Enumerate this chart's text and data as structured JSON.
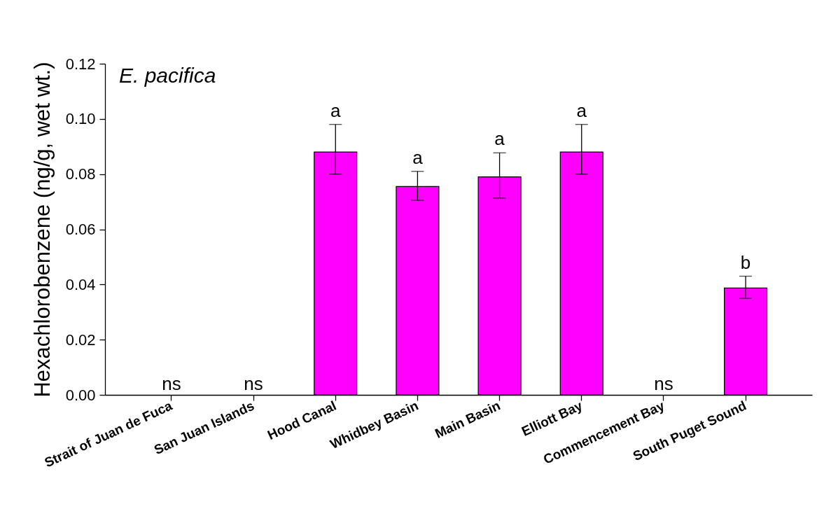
{
  "chart_data": {
    "type": "bar",
    "title": "E. pacifica",
    "ylabel": "Hexachlorobenzene (ng/g, wet wt.)",
    "categories": [
      "Strait of Juan de Fuca",
      "San Juan Islands",
      "Hood Canal",
      "Whidbey Basin",
      "Main Basin",
      "Elliott Bay",
      "Commencement Bay",
      "South Puget Sound"
    ],
    "values": [
      null,
      null,
      0.088,
      0.0755,
      0.079,
      0.088,
      null,
      0.0387
    ],
    "errors": [
      null,
      null,
      [
        0.08,
        0.098
      ],
      [
        0.0705,
        0.081
      ],
      [
        0.0713,
        0.0877
      ],
      [
        0.08,
        0.098
      ],
      null,
      [
        0.035,
        0.043
      ]
    ],
    "color": "#ff00ff",
    "ylim": [
      0,
      0.12
    ],
    "yticks": [
      {
        "value": 0,
        "label": "0.00"
      },
      {
        "value": 0.02,
        "label": "0.02"
      },
      {
        "value": 0.04,
        "label": "0.04"
      },
      {
        "value": 0.06,
        "label": "0.06"
      },
      {
        "value": 0.08,
        "label": "0.08"
      },
      {
        "value": 0.1,
        "label": "0.10"
      },
      {
        "value": 0.12,
        "label": "0.12"
      }
    ],
    "annotations": [
      "ns",
      "ns",
      "ns",
      {
        "text": "a",
        "x": "Hood Canal",
        "y": 0.098
      },
      {
        "text": "a",
        "x": "Whidbey Basin",
        "y": 0.081
      },
      {
        "text": "a",
        "x": "Main Basin",
        "y": 0.0877
      },
      {
        "text": "a",
        "x": "Elliott Bay",
        "y": 0.098
      },
      {
        "text": "b",
        "x": "South Puget Sound",
        "y": 0.043
      }
    ],
    "grid": false
  }
}
